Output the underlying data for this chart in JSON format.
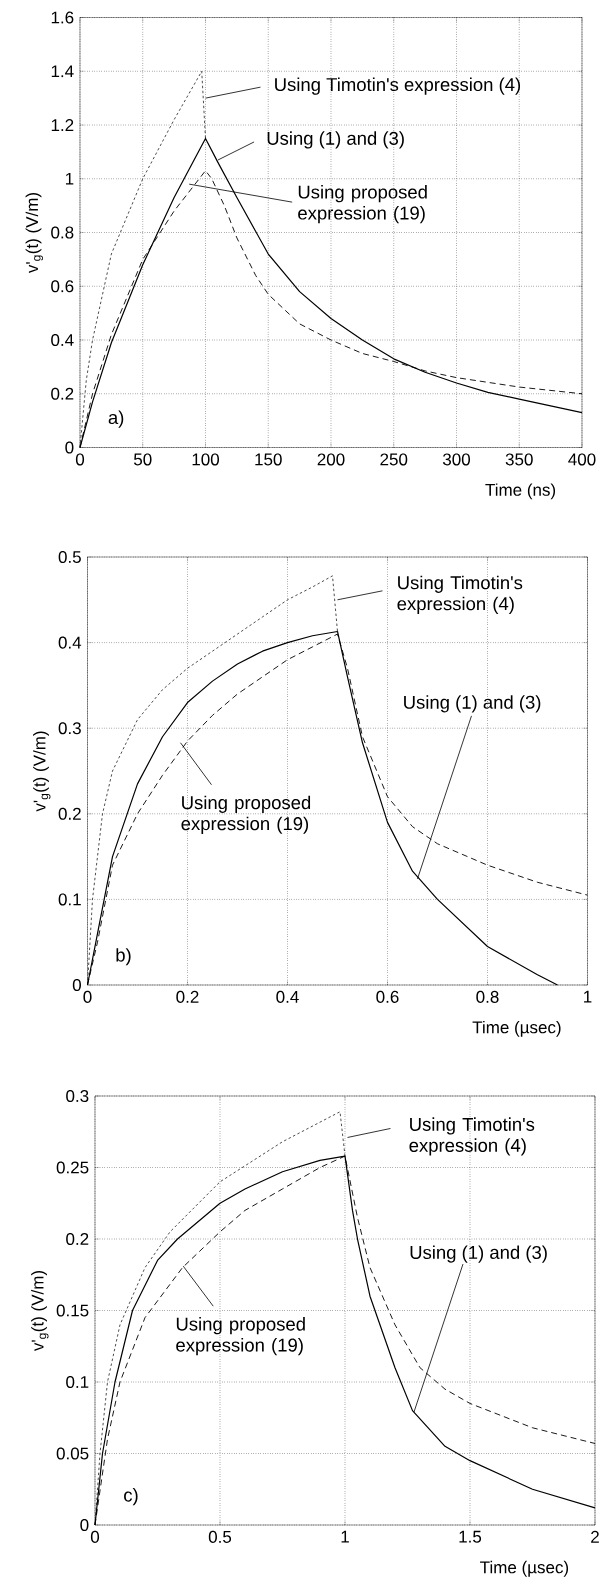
{
  "chart_data": [
    {
      "type": "line",
      "xlabel": "Time (ns)",
      "ylabel": "v'$_{g}$(t)   (V/m)",
      "xlim": [
        0,
        400
      ],
      "ylim": [
        0,
        1.6
      ],
      "xticks": [
        0,
        50,
        100,
        150,
        200,
        250,
        300,
        350,
        400
      ],
      "yticks": [
        0,
        0.2,
        0.4,
        0.6,
        0.8,
        1,
        1.2,
        1.4,
        1.6
      ],
      "grid": true,
      "series": [
        {
          "color": "#000000",
          "line_style": "dotted",
          "x": [
            0,
            5,
            10,
            25,
            50,
            75,
            97,
            100
          ],
          "values": [
            0,
            0.25,
            0.4,
            0.72,
            1.0,
            1.22,
            1.4,
            1.15
          ]
        },
        {
          "color": "#000000",
          "line_style": "solid",
          "x": [
            0,
            10,
            25,
            50,
            75,
            100,
            110,
            125,
            150,
            175,
            200,
            225,
            250,
            275,
            300,
            325,
            350,
            375,
            400
          ],
          "values": [
            0,
            0.17,
            0.39,
            0.68,
            0.93,
            1.15,
            1.06,
            0.93,
            0.72,
            0.58,
            0.48,
            0.4,
            0.33,
            0.28,
            0.24,
            0.205,
            0.18,
            0.155,
            0.13
          ]
        },
        {
          "color": "#000000",
          "line_style": "dashed",
          "x": [
            0,
            10,
            25,
            50,
            75,
            100,
            105,
            115,
            125,
            140,
            150,
            175,
            200,
            225,
            250,
            275,
            300,
            350,
            400
          ],
          "values": [
            0,
            0.2,
            0.42,
            0.7,
            0.88,
            1.03,
            1.0,
            0.9,
            0.78,
            0.64,
            0.57,
            0.46,
            0.4,
            0.35,
            0.32,
            0.285,
            0.26,
            0.225,
            0.2
          ]
        }
      ],
      "annotations": [
        {
          "text": "Using Timotin's expression (4)",
          "x": 100,
          "y": 1.3
        },
        {
          "text": "Using (1) and (3)",
          "x": 110,
          "y": 1.07
        },
        {
          "text": "Using proposed expression (19)",
          "x": 87,
          "y": 0.98
        },
        "a)"
      ]
    },
    {
      "type": "line",
      "xlabel": "Time (µsec)",
      "ylabel": "v'$_{g}$(t)   (V/m)",
      "xlim": [
        0,
        1
      ],
      "ylim": [
        0,
        0.5
      ],
      "xticks": [
        0,
        0.2,
        0.4,
        0.6,
        0.8,
        1
      ],
      "yticks": [
        0,
        0.1,
        0.2,
        0.3,
        0.4,
        0.5
      ],
      "grid": true,
      "series": [
        {
          "color": "#000000",
          "line_style": "dotted",
          "x": [
            0,
            0.01,
            0.03,
            0.05,
            0.1,
            0.15,
            0.2,
            0.25,
            0.3,
            0.35,
            0.4,
            0.45,
            0.49,
            0.5
          ],
          "values": [
            0,
            0.1,
            0.2,
            0.25,
            0.31,
            0.345,
            0.37,
            0.39,
            0.41,
            0.43,
            0.45,
            0.465,
            0.478,
            0.413
          ]
        },
        {
          "color": "#000000",
          "line_style": "solid",
          "x": [
            0,
            0.02,
            0.05,
            0.1,
            0.15,
            0.2,
            0.25,
            0.3,
            0.35,
            0.4,
            0.45,
            0.5,
            0.52,
            0.55,
            0.6,
            0.65,
            0.7,
            0.8,
            0.9,
            0.94
          ],
          "values": [
            0,
            0.06,
            0.15,
            0.235,
            0.29,
            0.33,
            0.355,
            0.375,
            0.39,
            0.4,
            0.408,
            0.413,
            0.36,
            0.283,
            0.19,
            0.133,
            0.1,
            0.045,
            0.012,
            0
          ]
        },
        {
          "color": "#000000",
          "line_style": "dashed",
          "x": [
            0,
            0.02,
            0.05,
            0.1,
            0.15,
            0.2,
            0.25,
            0.3,
            0.35,
            0.4,
            0.45,
            0.5,
            0.52,
            0.55,
            0.6,
            0.65,
            0.7,
            0.8,
            0.9,
            1
          ],
          "values": [
            0,
            0.05,
            0.14,
            0.2,
            0.245,
            0.285,
            0.315,
            0.34,
            0.36,
            0.38,
            0.395,
            0.41,
            0.37,
            0.29,
            0.22,
            0.185,
            0.165,
            0.14,
            0.12,
            0.105
          ]
        }
      ],
      "annotations": [
        {
          "text": "Using Timotin's expression (4)",
          "x": 0.5,
          "y": 0.45
        },
        {
          "text": "Using (1) and (3)",
          "x": 0.66,
          "y": 0.124
        },
        {
          "text": "Using proposed expression (19)",
          "x": 0.186,
          "y": 0.283
        },
        "b)"
      ]
    },
    {
      "type": "line",
      "xlabel": "Time (µsec)",
      "ylabel": "v'$_{g}$(t)   (V/m)",
      "xlim": [
        0,
        2
      ],
      "ylim": [
        0,
        0.3
      ],
      "xticks": [
        0,
        0.5,
        1,
        1.5,
        2
      ],
      "yticks": [
        0,
        0.05,
        0.1,
        0.15,
        0.2,
        0.25,
        0.3
      ],
      "grid": true,
      "series": [
        {
          "color": "#000000",
          "line_style": "dotted",
          "x": [
            0,
            0.02,
            0.05,
            0.1,
            0.2,
            0.3,
            0.5,
            0.75,
            0.98,
            1
          ],
          "values": [
            0,
            0.05,
            0.1,
            0.14,
            0.18,
            0.205,
            0.24,
            0.268,
            0.289,
            0.258
          ]
        },
        {
          "color": "#000000",
          "line_style": "solid",
          "x": [
            0,
            0.03,
            0.08,
            0.15,
            0.25,
            0.33,
            0.5,
            0.6,
            0.75,
            0.9,
            1,
            1.03,
            1.05,
            1.1,
            1.2,
            1.27,
            1.4,
            1.5,
            1.75,
            2
          ],
          "values": [
            0,
            0.05,
            0.1,
            0.15,
            0.185,
            0.2,
            0.225,
            0.235,
            0.247,
            0.255,
            0.258,
            0.22,
            0.2,
            0.16,
            0.11,
            0.08,
            0.055,
            0.045,
            0.025,
            0.012
          ]
        },
        {
          "color": "#000000",
          "line_style": "dashed",
          "x": [
            0,
            0.05,
            0.1,
            0.2,
            0.35,
            0.5,
            0.6,
            0.75,
            0.9,
            1,
            1.05,
            1.1,
            1.2,
            1.3,
            1.4,
            1.5,
            1.75,
            2
          ],
          "values": [
            0,
            0.06,
            0.1,
            0.145,
            0.18,
            0.205,
            0.22,
            0.235,
            0.25,
            0.258,
            0.215,
            0.18,
            0.14,
            0.11,
            0.095,
            0.085,
            0.068,
            0.057
          ]
        }
      ],
      "annotations": [
        {
          "text": "Using Timotin's expression (4)",
          "x": 1.01,
          "y": 0.271
        },
        {
          "text": "Using (1) and (3)",
          "x": 1.276,
          "y": 0.079
        },
        {
          "text": "Using proposed expression (19)",
          "x": 0.353,
          "y": 0.181
        },
        "c)"
      ]
    }
  ]
}
